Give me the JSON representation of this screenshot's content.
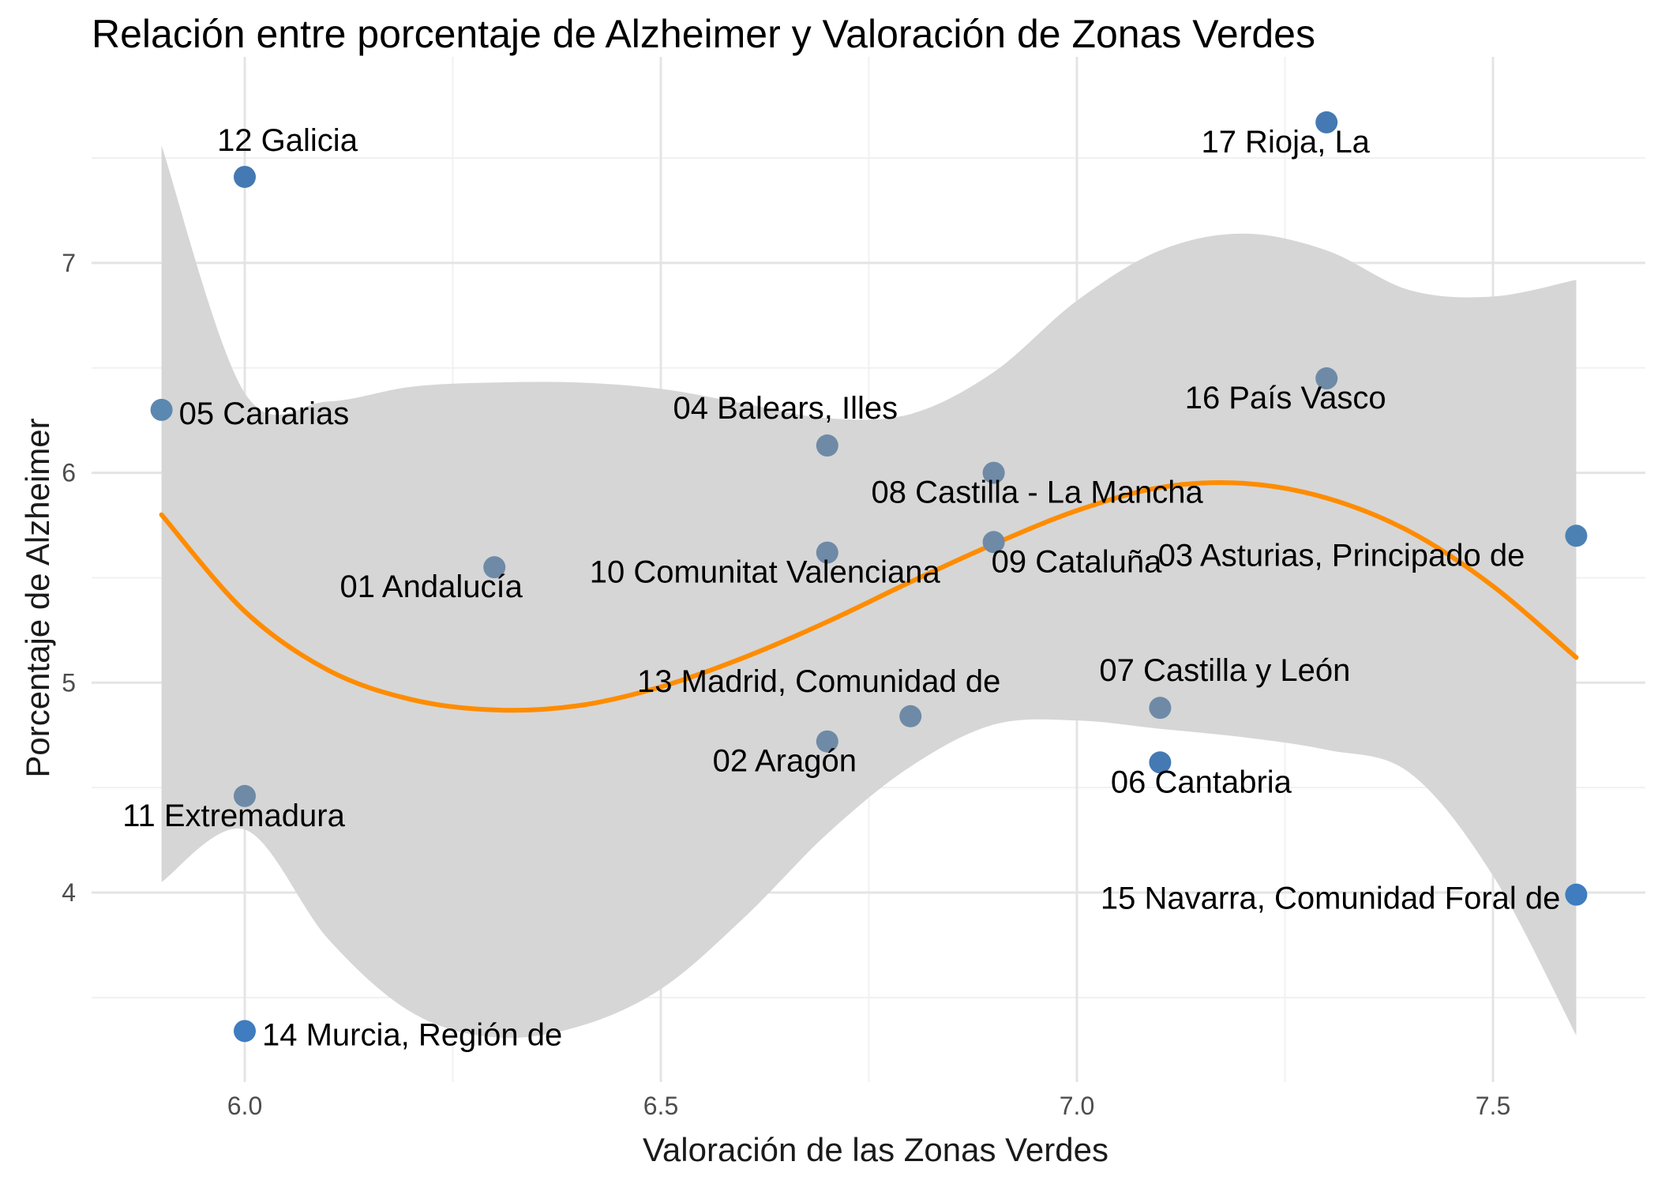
{
  "chart_data": {
    "type": "scatter",
    "title": "Relación entre porcentaje de Alzheimer y Valoración de Zonas Verdes",
    "xlabel": "Valoración de las Zonas Verdes",
    "ylabel": "Porcentaje de Alzheimer",
    "xlim": [
      5.81,
      7.69
    ],
    "ylim": [
      3.13,
      7.86
    ],
    "x_ticks": [
      6.0,
      6.5,
      7.0,
      7.5
    ],
    "x_tick_labels": [
      "6.0",
      "6.5",
      "7.0",
      "7.5"
    ],
    "y_ticks": [
      4,
      5,
      6,
      7
    ],
    "y_tick_labels": [
      "4",
      "5",
      "6",
      "7"
    ],
    "grid": true,
    "legend": "none",
    "points": [
      {
        "label": "01 Andalucía",
        "x": 6.3,
        "y": 5.55,
        "color": "#6e8aa6"
      },
      {
        "label": "02 Aragón",
        "x": 6.7,
        "y": 4.72,
        "color": "#6e8aa6"
      },
      {
        "label": "03 Asturias, Principado de",
        "x": 7.6,
        "y": 5.7,
        "color": "#4b82b3"
      },
      {
        "label": "04 Balears, Illes",
        "x": 6.7,
        "y": 6.13,
        "color": "#6e8aa6"
      },
      {
        "label": "05 Canarias",
        "x": 5.9,
        "y": 6.3,
        "color": "#5b88b0"
      },
      {
        "label": "06 Cantabria",
        "x": 7.1,
        "y": 4.62,
        "color": "#4479b3"
      },
      {
        "label": "07 Castilla y León",
        "x": 7.1,
        "y": 4.88,
        "color": "#6e8aa6"
      },
      {
        "label": "08 Castilla - La Mancha",
        "x": 6.9,
        "y": 6.0,
        "color": "#6e8aa6"
      },
      {
        "label": "09 Cataluña",
        "x": 6.9,
        "y": 5.67,
        "color": "#6e8aa6"
      },
      {
        "label": "10 Comunitat Valenciana",
        "x": 6.7,
        "y": 5.62,
        "color": "#6e8aa6"
      },
      {
        "label": "11 Extremadura",
        "x": 6.0,
        "y": 4.46,
        "color": "#6e8aa6"
      },
      {
        "label": "12 Galicia",
        "x": 6.0,
        "y": 7.41,
        "color": "#4479b3"
      },
      {
        "label": "13 Madrid, Comunidad de",
        "x": 6.8,
        "y": 4.84,
        "color": "#6e8aa6"
      },
      {
        "label": "14 Murcia, Región de",
        "x": 6.0,
        "y": 3.34,
        "color": "#3f7cc0"
      },
      {
        "label": "15 Navarra, Comunidad Foral de",
        "x": 7.6,
        "y": 3.99,
        "color": "#3f7cc0"
      },
      {
        "label": "16 País Vasco",
        "x": 7.3,
        "y": 6.45,
        "color": "#6e8aa6"
      },
      {
        "label": "17 Rioja, La",
        "x": 7.3,
        "y": 7.67,
        "color": "#4479b3"
      }
    ],
    "smooth": {
      "method": "loess",
      "color": "#ff8c00",
      "band_color": "#d6d6d6",
      "x": [
        5.9,
        6.0,
        6.1,
        6.2,
        6.3,
        6.4,
        6.5,
        6.6,
        6.7,
        6.8,
        6.9,
        7.0,
        7.1,
        7.2,
        7.3,
        7.4,
        7.5,
        7.6
      ],
      "y": [
        5.8,
        5.34,
        5.06,
        4.92,
        4.87,
        4.89,
        4.98,
        5.12,
        5.29,
        5.48,
        5.66,
        5.82,
        5.93,
        5.95,
        5.88,
        5.72,
        5.46,
        5.12
      ],
      "upper": [
        7.56,
        6.38,
        6.34,
        6.41,
        6.43,
        6.43,
        6.4,
        6.33,
        6.26,
        6.28,
        6.48,
        6.82,
        7.06,
        7.14,
        7.06,
        6.87,
        6.84,
        6.92
      ],
      "lower": [
        4.05,
        4.3,
        3.78,
        3.43,
        3.31,
        3.36,
        3.54,
        3.88,
        4.28,
        4.6,
        4.8,
        4.82,
        4.78,
        4.74,
        4.68,
        4.57,
        4.08,
        3.32
      ]
    }
  }
}
